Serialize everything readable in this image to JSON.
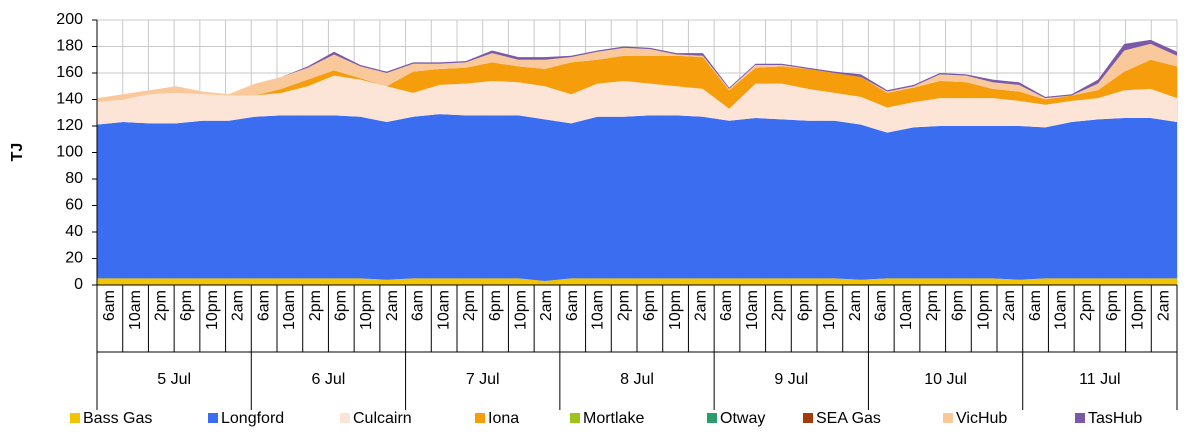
{
  "chart_data": {
    "type": "stacked-area",
    "y_label": "TJ",
    "ylim": [
      0,
      200
    ],
    "yticks": [
      0,
      20,
      40,
      60,
      80,
      100,
      120,
      140,
      160,
      180,
      200
    ],
    "grid": true,
    "categories": [
      "6am",
      "10am",
      "2pm",
      "6pm",
      "10pm",
      "2am",
      "6am",
      "10am",
      "2pm",
      "6pm",
      "10pm",
      "2am",
      "6am",
      "10am",
      "2pm",
      "6pm",
      "10pm",
      "2am",
      "6am",
      "10am",
      "2pm",
      "6pm",
      "10pm",
      "2am",
      "6am",
      "10am",
      "2pm",
      "6pm",
      "10pm",
      "2am",
      "6am",
      "10am",
      "2pm",
      "6pm",
      "10pm",
      "2am",
      "6am",
      "10am",
      "2pm",
      "6pm",
      "10pm",
      "2am"
    ],
    "days": [
      "5 Jul",
      "6 Jul",
      "7 Jul",
      "8 Jul",
      "9 Jul",
      "10 Jul",
      "11 Jul"
    ],
    "legend": "bottom",
    "series": [
      {
        "name": "Bass Gas",
        "color": "#f2c500",
        "values": [
          5,
          5,
          5,
          5,
          5,
          5,
          5,
          5,
          5,
          5,
          5,
          4,
          5,
          5,
          5,
          5,
          5,
          3,
          5,
          5,
          5,
          5,
          5,
          5,
          5,
          5,
          5,
          5,
          5,
          4,
          5,
          5,
          5,
          5,
          5,
          4,
          5,
          5,
          5,
          5,
          5,
          5
        ]
      },
      {
        "name": "Longford",
        "color": "#3a6df0",
        "values": [
          116,
          118,
          117,
          117,
          119,
          119,
          122,
          123,
          123,
          123,
          122,
          119,
          122,
          124,
          123,
          123,
          123,
          122,
          117,
          122,
          122,
          123,
          123,
          122,
          119,
          121,
          120,
          119,
          119,
          117,
          110,
          114,
          115,
          115,
          115,
          116,
          114,
          118,
          120,
          121,
          121,
          118
        ]
      },
      {
        "name": "Culcairn",
        "color": "#fce4d6",
        "values": [
          17,
          17,
          22,
          23,
          20,
          19,
          16,
          17,
          22,
          30,
          28,
          27,
          18,
          22,
          24,
          26,
          25,
          25,
          22,
          25,
          27,
          24,
          22,
          21,
          9,
          26,
          27,
          24,
          21,
          21,
          19,
          19,
          21,
          21,
          21,
          19,
          17,
          16,
          16,
          21,
          22,
          18
        ]
      },
      {
        "name": "Iona",
        "color": "#f59d0a",
        "values": [
          0,
          0,
          0,
          0,
          0,
          0,
          0,
          3,
          5,
          4,
          1,
          0,
          16,
          12,
          12,
          14,
          12,
          13,
          24,
          18,
          19,
          21,
          23,
          24,
          14,
          12,
          13,
          15,
          15,
          15,
          11,
          11,
          13,
          12,
          7,
          7,
          4,
          4,
          6,
          14,
          22,
          24
        ]
      },
      {
        "name": "Mortlake",
        "color": "#9dc41a",
        "values": [
          0,
          0,
          0,
          0,
          0,
          0,
          0,
          0,
          0,
          0,
          0,
          0,
          0,
          0,
          0,
          0,
          0,
          0,
          0,
          0,
          0,
          0,
          0,
          0,
          0,
          0,
          0,
          0,
          0,
          0,
          0,
          0,
          0,
          0,
          0,
          0,
          0,
          0,
          0,
          0,
          0,
          0
        ]
      },
      {
        "name": "Otway",
        "color": "#2a9d6a",
        "values": [
          0,
          0,
          0,
          0,
          0,
          0,
          0,
          0,
          0,
          0,
          0,
          0,
          0,
          0,
          0,
          0,
          0,
          0,
          0,
          0,
          0,
          0,
          0,
          0,
          0,
          0,
          0,
          0,
          0,
          0,
          0,
          0,
          0,
          0,
          0,
          0,
          0,
          0,
          0,
          0,
          0,
          0
        ]
      },
      {
        "name": "SEA Gas",
        "color": "#a33a0c",
        "values": [
          0,
          0,
          0,
          0,
          0,
          0,
          0,
          0,
          0,
          0,
          0,
          0,
          0,
          0,
          0,
          0,
          0,
          0,
          0,
          0,
          0,
          0,
          0,
          0,
          0,
          0,
          0,
          0,
          0,
          0,
          0,
          0,
          0,
          0,
          0,
          0,
          0,
          0,
          0,
          0,
          0,
          0
        ]
      },
      {
        "name": "VicHub",
        "color": "#f9c89b",
        "values": [
          3,
          4,
          3,
          5,
          2,
          1,
          9,
          9,
          9,
          12,
          9,
          10,
          6,
          4,
          4,
          7,
          5,
          7,
          4,
          6,
          6,
          5,
          1,
          1,
          1,
          2,
          1,
          0,
          0,
          0,
          1,
          1,
          5,
          5,
          5,
          5,
          1,
          0,
          5,
          16,
          12,
          8
        ]
      },
      {
        "name": "TasHub",
        "color": "#7a5aa6",
        "values": [
          0,
          0,
          0,
          0,
          0,
          0,
          0,
          0,
          1,
          2,
          1,
          1,
          1,
          1,
          1,
          2,
          2,
          2,
          1,
          1,
          1,
          1,
          1,
          2,
          1,
          1,
          1,
          1,
          1,
          2,
          1,
          1,
          1,
          1,
          2,
          2,
          1,
          1,
          3,
          5,
          3,
          3
        ]
      }
    ]
  }
}
